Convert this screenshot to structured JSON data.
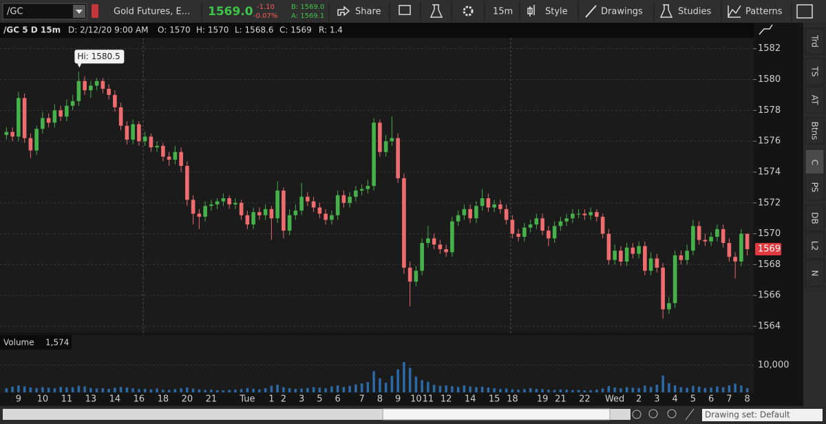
{
  "toolbar": {
    "symbol": "/GC",
    "description": "Gold Futures, E...",
    "last": "1569.0",
    "change": "-1.10",
    "change_pct": "-0.07%",
    "bid": "B: 1569.0",
    "ask": "A: 1569.1",
    "share": "Share",
    "timeframe": "15m",
    "style": "Style",
    "drawings": "Drawings",
    "studies": "Studies",
    "patterns": "Patterns"
  },
  "chart_header": {
    "title": "/GC 5 D 15m",
    "date": "D: 2/12/20 9:00 AM",
    "open": "O: 1570",
    "high": "H: 1570",
    "low": "L: 1568.6",
    "close": "C: 1569",
    "range": "R: 1.4"
  },
  "sidebar_tabs": [
    "Trd",
    "TS",
    "AT",
    "Btns",
    "C",
    "PS",
    "DB",
    "L2",
    "N"
  ],
  "status": {
    "drawing_set": "Drawing set: Default"
  },
  "chart_data": {
    "type": "candlestick",
    "hi_label": "Hi: 1580.5",
    "last_label": "1569",
    "volume_title": "Volume",
    "volume_last": "1,574",
    "up_color": "#46b04a",
    "down_color": "#ee6b6e",
    "volume_color": "#2a6aa8",
    "ylim": [
      1563.6,
      1582.7
    ],
    "yticks": [
      1564,
      1566,
      1568,
      1570,
      1572,
      1574,
      1576,
      1578,
      1580,
      1582
    ],
    "grid": true,
    "volume_ylim": [
      0,
      15000
    ],
    "volume_yticks": [
      {
        "value": 10000,
        "label": "10,000"
      }
    ],
    "categories": [
      null,
      null,
      "9",
      null,
      null,
      null,
      "10",
      null,
      null,
      null,
      "11",
      null,
      null,
      null,
      "13",
      null,
      null,
      null,
      "14",
      null,
      null,
      null,
      "16",
      null,
      null,
      null,
      "18",
      null,
      null,
      null,
      "20",
      null,
      null,
      null,
      "21",
      null,
      null,
      null,
      null,
      null,
      "Tue",
      null,
      null,
      null,
      "1",
      null,
      "2",
      null,
      null,
      "3",
      null,
      null,
      "5",
      null,
      null,
      "6",
      null,
      null,
      null,
      "7",
      null,
      null,
      "8",
      null,
      null,
      "9",
      null,
      null,
      "10",
      null,
      "11",
      null,
      null,
      "12",
      null,
      null,
      null,
      "14",
      null,
      null,
      null,
      "15",
      null,
      null,
      "18",
      null,
      null,
      null,
      null,
      "19",
      null,
      null,
      "21",
      null,
      null,
      null,
      "22",
      null,
      null,
      null,
      null,
      "Wed",
      null,
      null,
      null,
      "2",
      null,
      null,
      "3",
      null,
      null,
      "4",
      null,
      null,
      "5",
      null,
      null,
      "6",
      null,
      null,
      "7",
      null,
      null,
      "8"
    ],
    "ohlc": [
      [
        1576.4,
        1576.9,
        1576.1,
        1576.6
      ],
      [
        1576.6,
        1576.9,
        1576.0,
        1576.3
      ],
      [
        1576.3,
        1579.2,
        1576.0,
        1578.8
      ],
      [
        1578.8,
        1579.1,
        1575.9,
        1576.2
      ],
      [
        1576.2,
        1576.5,
        1574.9,
        1575.4
      ],
      [
        1575.4,
        1577.0,
        1575.1,
        1576.8
      ],
      [
        1576.8,
        1577.9,
        1576.5,
        1577.5
      ],
      [
        1577.5,
        1577.8,
        1576.9,
        1577.2
      ],
      [
        1577.2,
        1578.4,
        1576.9,
        1578.0
      ],
      [
        1578.0,
        1578.3,
        1577.3,
        1577.6
      ],
      [
        1577.6,
        1578.7,
        1577.3,
        1578.3
      ],
      [
        1578.3,
        1579.0,
        1578.0,
        1578.6
      ],
      [
        1578.6,
        1580.5,
        1578.3,
        1579.9
      ],
      [
        1579.9,
        1580.2,
        1579.0,
        1579.3
      ],
      [
        1579.3,
        1579.9,
        1578.8,
        1579.6
      ],
      [
        1579.6,
        1580.1,
        1579.3,
        1579.9
      ],
      [
        1579.9,
        1580.1,
        1579.1,
        1579.4
      ],
      [
        1579.4,
        1579.7,
        1578.7,
        1579.0
      ],
      [
        1579.0,
        1579.3,
        1577.9,
        1578.2
      ],
      [
        1578.2,
        1578.5,
        1576.7,
        1577.0
      ],
      [
        1577.0,
        1577.3,
        1575.8,
        1576.1
      ],
      [
        1576.1,
        1577.4,
        1575.8,
        1577.1
      ],
      [
        1577.1,
        1577.3,
        1575.7,
        1576.0
      ],
      [
        1576.0,
        1576.6,
        1575.7,
        1576.3
      ],
      [
        1576.3,
        1576.5,
        1575.3,
        1575.6
      ],
      [
        1575.6,
        1576.0,
        1575.3,
        1575.7
      ],
      [
        1575.7,
        1575.9,
        1574.7,
        1575.0
      ],
      [
        1575.0,
        1575.3,
        1574.4,
        1574.8
      ],
      [
        1574.8,
        1575.7,
        1574.5,
        1575.3
      ],
      [
        1575.3,
        1575.6,
        1574.0,
        1574.4
      ],
      [
        1574.4,
        1574.7,
        1571.8,
        1572.2
      ],
      [
        1572.2,
        1572.5,
        1570.6,
        1571.3
      ],
      [
        1571.3,
        1571.6,
        1570.3,
        1571.1
      ],
      [
        1571.1,
        1572.1,
        1570.8,
        1571.8
      ],
      [
        1571.8,
        1572.2,
        1571.5,
        1571.9
      ],
      [
        1571.9,
        1572.3,
        1571.6,
        1572.1
      ],
      [
        1572.1,
        1572.6,
        1571.8,
        1572.3
      ],
      [
        1572.3,
        1572.5,
        1571.6,
        1571.9
      ],
      [
        1571.9,
        1572.3,
        1571.6,
        1572.0
      ],
      [
        1572.0,
        1572.2,
        1570.9,
        1571.2
      ],
      [
        1571.2,
        1571.5,
        1570.3,
        1570.6
      ],
      [
        1570.6,
        1571.7,
        1570.3,
        1571.4
      ],
      [
        1571.4,
        1571.7,
        1570.9,
        1571.2
      ],
      [
        1571.2,
        1571.9,
        1570.9,
        1571.6
      ],
      [
        1571.6,
        1571.8,
        1569.6,
        1571.0
      ],
      [
        1571.0,
        1573.4,
        1570.7,
        1572.8
      ],
      [
        1572.8,
        1573.0,
        1569.7,
        1570.2
      ],
      [
        1570.2,
        1571.6,
        1569.9,
        1571.2
      ],
      [
        1571.2,
        1571.9,
        1570.9,
        1571.5
      ],
      [
        1571.5,
        1573.3,
        1571.2,
        1572.4
      ],
      [
        1572.4,
        1572.7,
        1571.8,
        1572.1
      ],
      [
        1572.1,
        1572.4,
        1571.4,
        1571.7
      ],
      [
        1571.7,
        1572.0,
        1571.0,
        1571.3
      ],
      [
        1571.3,
        1571.6,
        1570.6,
        1570.9
      ],
      [
        1570.9,
        1571.5,
        1570.6,
        1571.2
      ],
      [
        1571.2,
        1572.8,
        1570.9,
        1572.5
      ],
      [
        1572.5,
        1572.8,
        1571.7,
        1572.0
      ],
      [
        1572.0,
        1572.7,
        1571.7,
        1572.4
      ],
      [
        1572.4,
        1573.1,
        1572.1,
        1572.8
      ],
      [
        1572.8,
        1573.2,
        1572.5,
        1572.9
      ],
      [
        1572.9,
        1573.5,
        1572.6,
        1573.1
      ],
      [
        1573.1,
        1577.5,
        1572.8,
        1577.2
      ],
      [
        1577.2,
        1577.4,
        1575.0,
        1575.3
      ],
      [
        1575.3,
        1576.4,
        1575.0,
        1576.0
      ],
      [
        1576.0,
        1577.6,
        1575.7,
        1576.2
      ],
      [
        1576.2,
        1576.5,
        1573.3,
        1573.6
      ],
      [
        1573.6,
        1573.9,
        1567.4,
        1567.8
      ],
      [
        1567.8,
        1568.2,
        1565.3,
        1566.9
      ],
      [
        1566.9,
        1567.9,
        1566.6,
        1567.6
      ],
      [
        1567.6,
        1569.7,
        1567.3,
        1569.4
      ],
      [
        1569.4,
        1570.5,
        1569.1,
        1569.7
      ],
      [
        1569.7,
        1570.0,
        1569.0,
        1569.3
      ],
      [
        1569.3,
        1569.6,
        1568.7,
        1569.0
      ],
      [
        1569.0,
        1569.3,
        1568.5,
        1568.8
      ],
      [
        1568.8,
        1571.1,
        1568.5,
        1570.8
      ],
      [
        1570.8,
        1571.5,
        1570.5,
        1571.2
      ],
      [
        1571.2,
        1571.9,
        1570.9,
        1571.6
      ],
      [
        1571.6,
        1571.9,
        1570.7,
        1571.0
      ],
      [
        1571.0,
        1572.1,
        1570.7,
        1571.8
      ],
      [
        1571.8,
        1572.9,
        1571.5,
        1572.3
      ],
      [
        1572.3,
        1572.6,
        1571.4,
        1571.7
      ],
      [
        1571.7,
        1572.2,
        1571.4,
        1571.9
      ],
      [
        1571.9,
        1572.2,
        1571.3,
        1571.6
      ],
      [
        1571.6,
        1571.9,
        1570.6,
        1570.9
      ],
      [
        1570.9,
        1571.2,
        1569.7,
        1570.0
      ],
      [
        1570.0,
        1570.3,
        1569.5,
        1569.8
      ],
      [
        1569.8,
        1570.7,
        1569.5,
        1570.4
      ],
      [
        1570.4,
        1570.9,
        1570.1,
        1570.6
      ],
      [
        1570.6,
        1571.3,
        1570.3,
        1571.0
      ],
      [
        1571.0,
        1571.3,
        1569.9,
        1570.2
      ],
      [
        1570.2,
        1570.5,
        1569.2,
        1569.7
      ],
      [
        1569.7,
        1570.8,
        1569.4,
        1570.5
      ],
      [
        1570.5,
        1571.1,
        1570.2,
        1570.8
      ],
      [
        1570.8,
        1571.3,
        1570.5,
        1571.0
      ],
      [
        1571.0,
        1571.6,
        1570.7,
        1571.3
      ],
      [
        1571.3,
        1571.6,
        1571.0,
        1571.3
      ],
      [
        1571.3,
        1571.6,
        1570.9,
        1571.2
      ],
      [
        1571.2,
        1571.7,
        1570.9,
        1571.4
      ],
      [
        1571.4,
        1571.6,
        1570.8,
        1571.1
      ],
      [
        1571.1,
        1571.3,
        1569.7,
        1570.0
      ],
      [
        1570.0,
        1570.3,
        1568.0,
        1568.3
      ],
      [
        1568.3,
        1569.3,
        1568.0,
        1568.9
      ],
      [
        1568.9,
        1569.2,
        1567.9,
        1568.2
      ],
      [
        1568.2,
        1569.4,
        1567.9,
        1569.1
      ],
      [
        1569.1,
        1569.4,
        1568.4,
        1568.7
      ],
      [
        1568.7,
        1569.5,
        1568.4,
        1569.2
      ],
      [
        1569.2,
        1569.5,
        1567.3,
        1567.6
      ],
      [
        1567.6,
        1568.8,
        1567.3,
        1568.4
      ],
      [
        1568.4,
        1568.7,
        1567.5,
        1567.8
      ],
      [
        1567.8,
        1568.1,
        1564.5,
        1565.1
      ],
      [
        1565.1,
        1565.9,
        1564.8,
        1565.5
      ],
      [
        1565.5,
        1568.9,
        1565.2,
        1568.6
      ],
      [
        1568.6,
        1568.9,
        1568.0,
        1568.3
      ],
      [
        1568.3,
        1569.3,
        1568.0,
        1568.9
      ],
      [
        1568.9,
        1570.9,
        1568.6,
        1570.5
      ],
      [
        1570.5,
        1570.8,
        1569.3,
        1569.6
      ],
      [
        1569.6,
        1570.0,
        1569.2,
        1569.5
      ],
      [
        1569.5,
        1570.1,
        1569.2,
        1569.8
      ],
      [
        1569.8,
        1570.6,
        1569.5,
        1570.3
      ],
      [
        1570.3,
        1570.6,
        1569.1,
        1569.4
      ],
      [
        1569.4,
        1569.7,
        1568.2,
        1568.5
      ],
      [
        1568.5,
        1568.8,
        1567.1,
        1568.2
      ],
      [
        1568.2,
        1570.3,
        1567.9,
        1570.0
      ],
      [
        1570.0,
        1570.0,
        1568.6,
        1569.0
      ]
    ],
    "volume": [
      1500,
      2100,
      2600,
      2200,
      1800,
      1600,
      1900,
      1700,
      1500,
      2000,
      1800,
      1900,
      2400,
      2200,
      1600,
      1400,
      1500,
      1300,
      1700,
      2000,
      1800,
      1500,
      1200,
      1300,
      1100,
      1400,
      1000,
      900,
      1200,
      1500,
      1800,
      1400,
      1100,
      900,
      1000,
      800,
      700,
      900,
      1000,
      1200,
      1600,
      1300,
      1100,
      1500,
      2400,
      2800,
      1900,
      1500,
      1300,
      1400,
      1600,
      1900,
      1700,
      1500,
      2200,
      2600,
      2000,
      2400,
      2900,
      3300,
      3800,
      7800,
      5200,
      3600,
      6100,
      8500,
      11200,
      9000,
      5800,
      4500,
      3900,
      2800,
      2400,
      2600,
      2300,
      2000,
      2600,
      2200,
      1900,
      2100,
      1800,
      1500,
      1300,
      1400,
      1100,
      1000,
      1200,
      1500,
      1300,
      1200,
      1000,
      900,
      1100,
      1000,
      800,
      900,
      700,
      800,
      1000,
      1400,
      2300,
      1800,
      1500,
      1900,
      1700,
      1600,
      2500,
      2000,
      2800,
      6200,
      3400,
      2600,
      1900,
      1700,
      2400,
      2100,
      1600,
      1800,
      2200,
      1900,
      2600,
      3200,
      2500,
      1574
    ]
  }
}
